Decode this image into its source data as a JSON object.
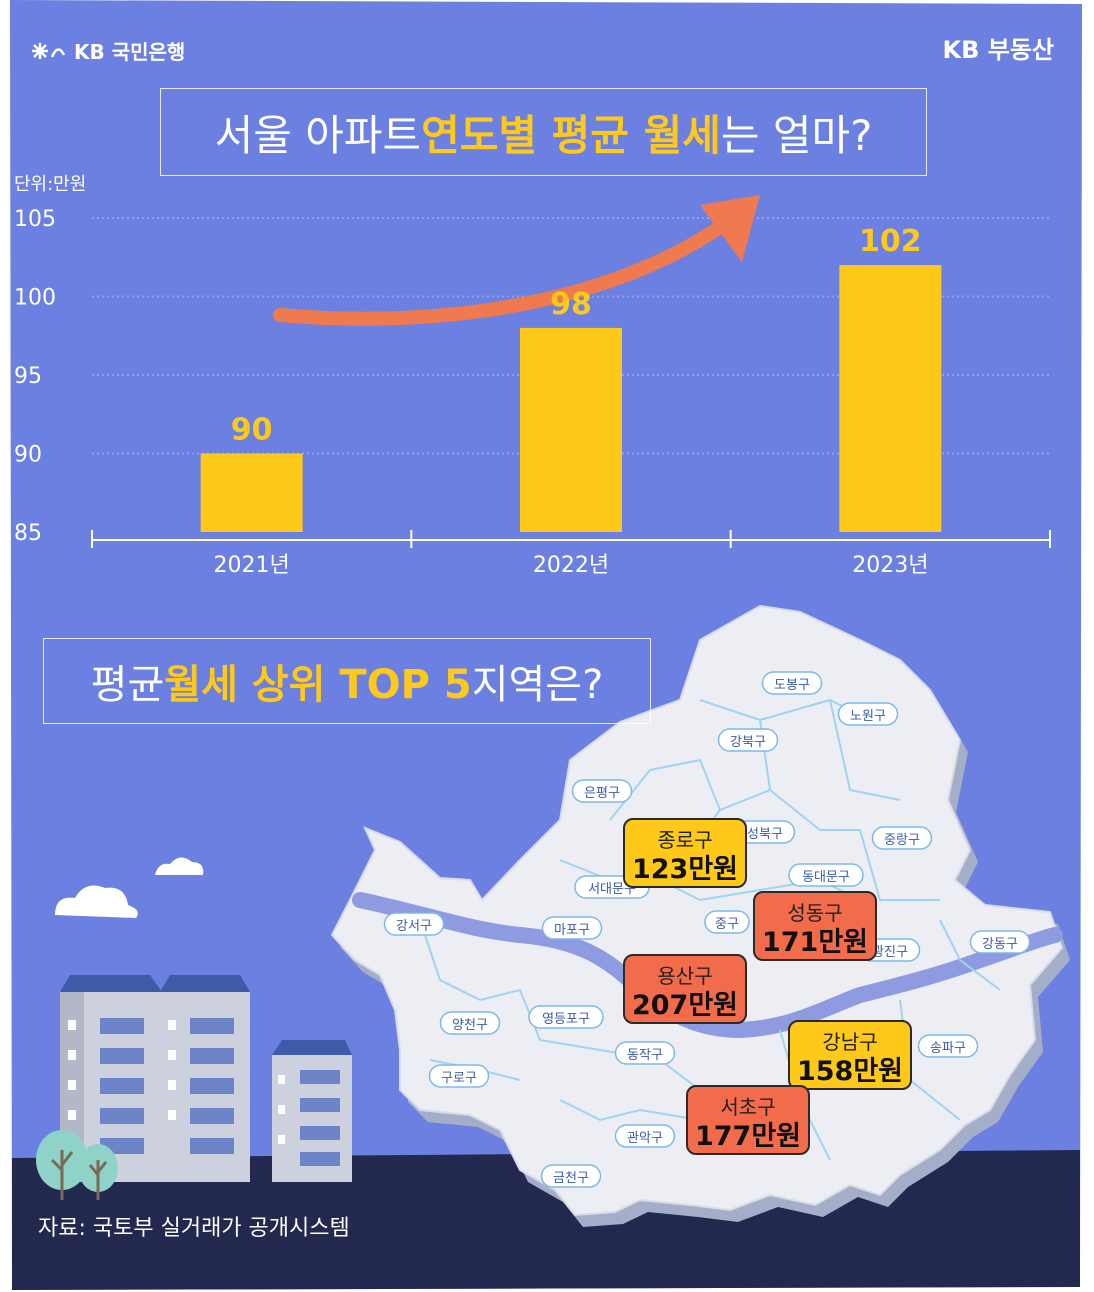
{
  "brand": {
    "bank": "KB 국민은행",
    "real_estate": "KB 부동산"
  },
  "chart_title": {
    "prefix": "서울 아파트 ",
    "highlight": "연도별 평균 월세",
    "suffix": "는 얼마?"
  },
  "unit_label": "단위:만원",
  "chart_data": {
    "type": "bar",
    "categories": [
      "2021년",
      "2022년",
      "2023년"
    ],
    "values": [
      90,
      98,
      102
    ],
    "ylim": [
      85,
      105
    ],
    "yticks": [
      85,
      90,
      95,
      100,
      105
    ],
    "unit": "만원",
    "grid": true,
    "colors": {
      "bar": "#FFC91A",
      "value_label": "#FFC91A",
      "background": "#6B80E0",
      "arrow": "#F07A4F"
    }
  },
  "top5_title": {
    "prefix": "평균 ",
    "highlight": "월세 상위 TOP 5",
    "suffix": " 지역은?"
  },
  "districts": [
    "도봉구",
    "노원구",
    "강북구",
    "은평구",
    "성북구",
    "중랑구",
    "동대문구",
    "서대문구",
    "마포구",
    "중구",
    "광진구",
    "강동구",
    "강서구",
    "양천구",
    "영등포구",
    "동작구",
    "송파구",
    "구로구",
    "관악구",
    "금천구"
  ],
  "top5": [
    {
      "name": "종로구",
      "value": "123만원",
      "color": "#FFC91A"
    },
    {
      "name": "성동구",
      "value": "171만원",
      "color": "#F26B4B"
    },
    {
      "name": "용산구",
      "value": "207만원",
      "color": "#F26B4B"
    },
    {
      "name": "강남구",
      "value": "158만원",
      "color": "#FFC91A"
    },
    {
      "name": "서초구",
      "value": "177만원",
      "color": "#F26B4B"
    }
  ],
  "source": "자료: 국토부 실거래가 공개시스템"
}
